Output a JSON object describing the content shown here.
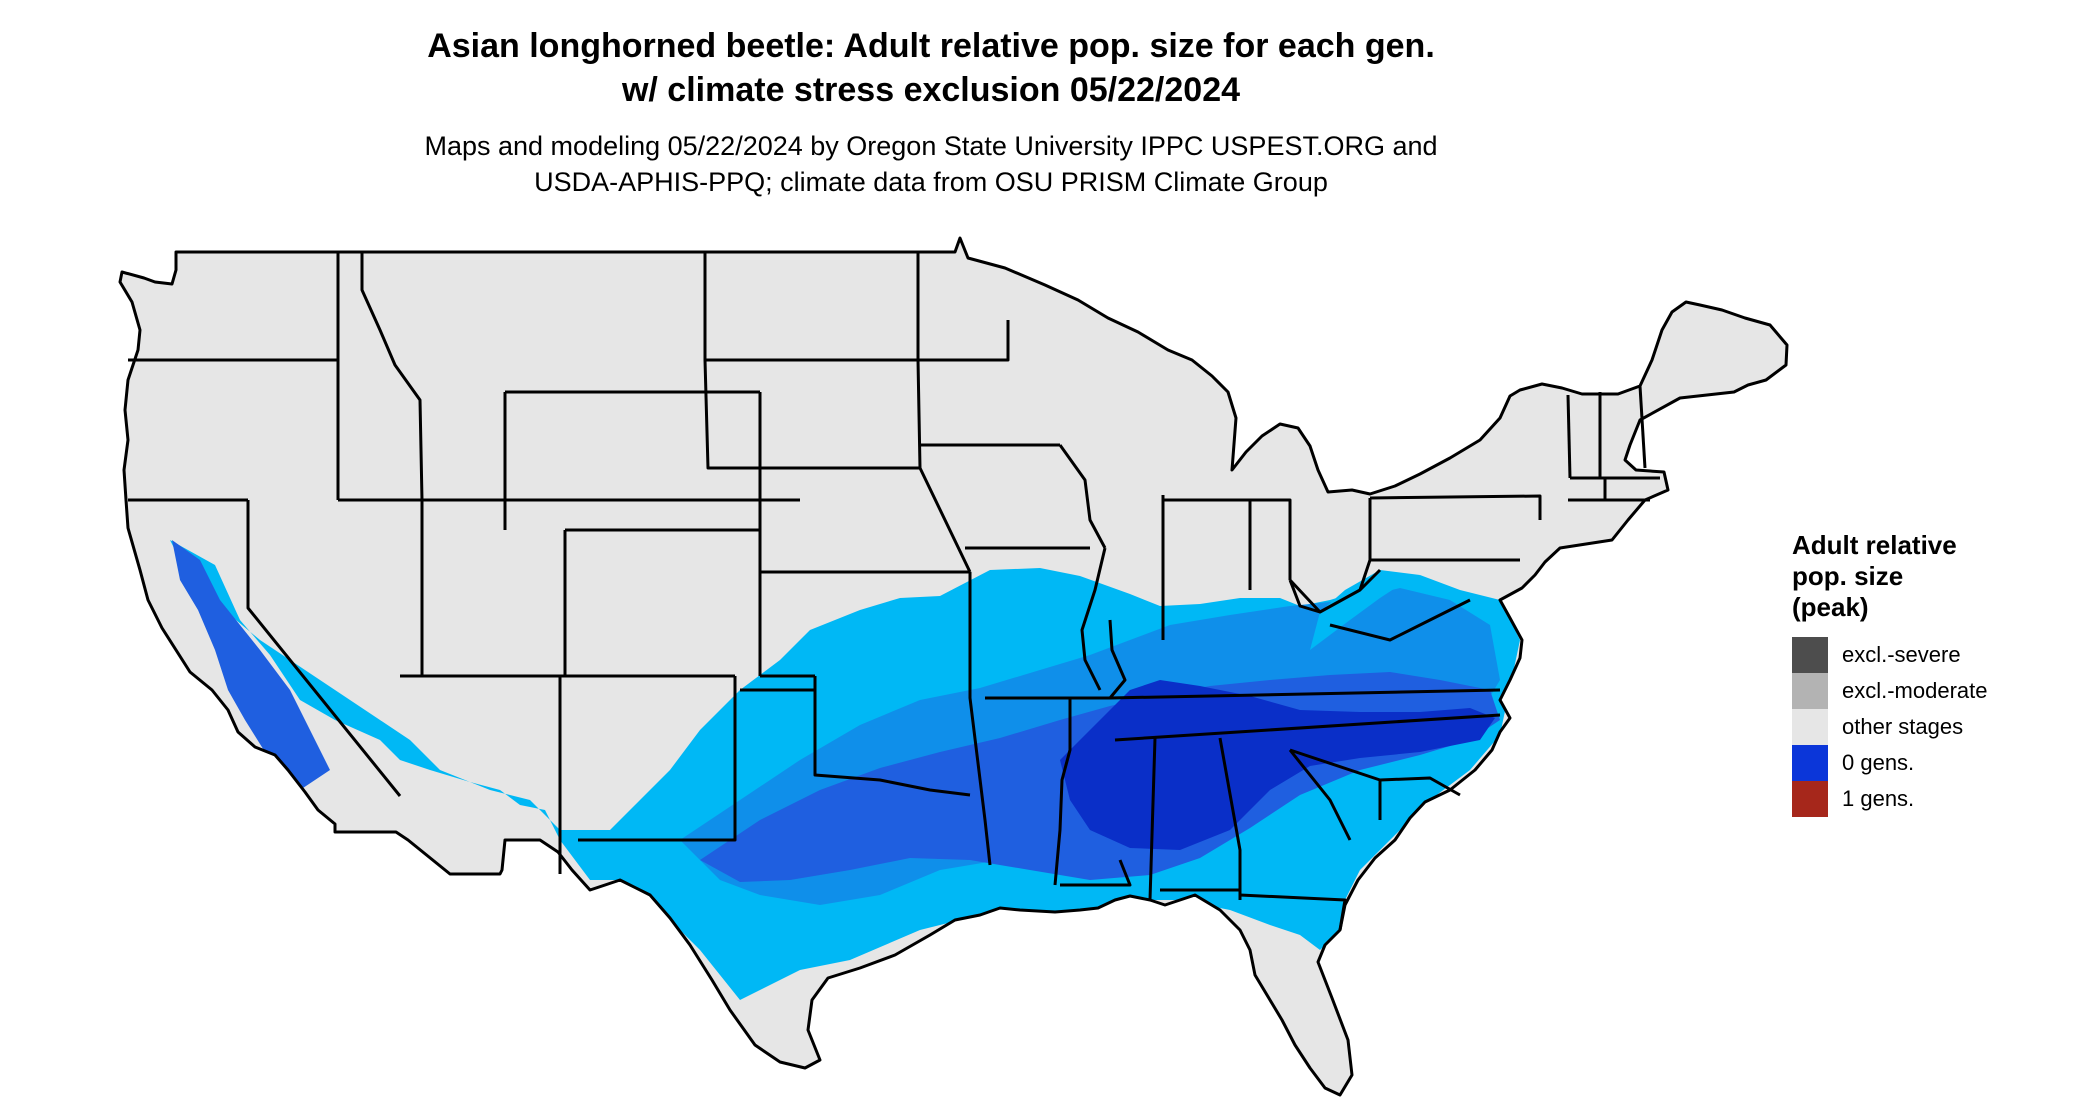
{
  "title": {
    "line1": "Asian longhorned beetle: Adult relative pop. size for each gen.",
    "line2": "w/ climate stress exclusion 05/22/2024"
  },
  "subtitle": {
    "line1": "Maps and modeling 05/22/2024 by Oregon State University IPPC USPEST.ORG and",
    "line2": "USDA-APHIS-PPQ; climate data from OSU PRISM Climate Group"
  },
  "legend": {
    "title_line1": "Adult relative",
    "title_line2": "pop. size",
    "title_line3": "(peak)",
    "items": [
      {
        "label": "excl.-severe",
        "color": "#4d4d4d"
      },
      {
        "label": "excl.-moderate",
        "color": "#b3b3b3"
      },
      {
        "label": "other stages",
        "color": "#e6e6e6"
      },
      {
        "label": "0 gens.",
        "color": "#0b36d9"
      },
      {
        "label": "1 gens.",
        "color": "#a6271b"
      }
    ]
  },
  "map": {
    "land_color": "#e6e6e6",
    "border_color": "#000000",
    "population_shades": [
      "#00b8f5",
      "#0f8fea",
      "#1f5fe0",
      "#0a2fc8"
    ]
  }
}
